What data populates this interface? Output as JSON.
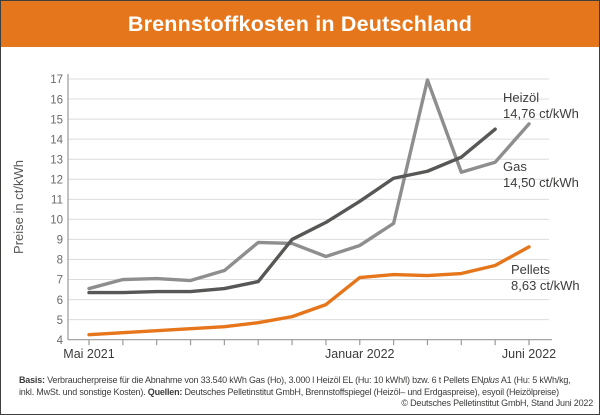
{
  "window": {
    "title": "Brennstoffkosten in Deutschland"
  },
  "chart_data": {
    "type": "line",
    "title": "Brennstoffkosten in Deutschland",
    "ylabel": "Preise in ct/kWh",
    "unit": "ct/kWh",
    "ylim": [
      4,
      17
    ],
    "y_ticks": [
      4,
      5,
      6,
      7,
      8,
      9,
      10,
      11,
      12,
      13,
      14,
      15,
      16,
      17
    ],
    "grid": true,
    "legend_position": "inline-right",
    "x": [
      "Mai 2021",
      "Juni 2021",
      "Juli 2021",
      "August 2021",
      "September 2021",
      "Oktober 2021",
      "November 2021",
      "Dezember 2021",
      "Januar 2022",
      "Februar 2022",
      "März 2022",
      "April 2022",
      "Mai 2022",
      "Juni 2022"
    ],
    "x_axis_labels": [
      {
        "index": 0,
        "label": "Mai 2021"
      },
      {
        "index": 8,
        "label": "Januar 2022"
      },
      {
        "index": 13,
        "label": "Juni 2022"
      }
    ],
    "series": [
      {
        "name": "Heizöl",
        "color": "#8e8e8e",
        "values": [
          6.55,
          7.0,
          7.05,
          6.95,
          7.45,
          8.85,
          8.8,
          8.15,
          8.7,
          9.8,
          16.95,
          12.35,
          12.85,
          14.76
        ],
        "end_label": "Heizöl",
        "end_value": "14,76 ct/kWh"
      },
      {
        "name": "Gas",
        "color": "#575756",
        "values": [
          6.35,
          6.35,
          6.4,
          6.4,
          6.55,
          6.9,
          9.0,
          9.85,
          10.9,
          12.05,
          12.4,
          13.1,
          14.5,
          null
        ],
        "end_label": "Gas",
        "end_value": "14,50 ct/kWh"
      },
      {
        "name": "Pellets",
        "color": "#e6761b",
        "values": [
          4.25,
          4.35,
          4.45,
          4.55,
          4.65,
          4.85,
          5.15,
          5.75,
          7.1,
          7.25,
          7.2,
          7.3,
          7.7,
          8.63
        ],
        "end_label": "Pellets",
        "end_value": "8,63 ct/kWh"
      }
    ]
  },
  "footer": {
    "line1_basis_label": "Basis:",
    "line1_text_a": " Verbraucherpreise für die Abnahme von 33.540 kWh Gas (Ho), 3.000 l Heizöl EL (Hu: 10 kWh/l) bzw. 6 t Pellets EN",
    "line1_enplus": "plus",
    "line1_text_b": " A1 (Hu: 5 kWh/kg,",
    "line2_text_a": "inkl. MwSt. und sonstige Kosten). ",
    "line2_quellen_label": "Quellen:",
    "line2_text_b": " Deutsches Pelletinstitut GmbH, Brennstoffspiegel (Heizöl– und Erdgaspreise), esyoil (Heizölpreise)",
    "copyright": "© Deutsches Pelletinstitut GmbH, Stand Juni 2022"
  },
  "colors": {
    "accent_orange": "#e6761b",
    "heizoel_gray": "#8e8e8e",
    "gas_dark_gray": "#575756",
    "grid_gray": "#dcdcdc",
    "axis_gray": "#9a9a9a",
    "tick_text_gray": "#6b6b6b",
    "label_text": "#3c3c3b"
  }
}
